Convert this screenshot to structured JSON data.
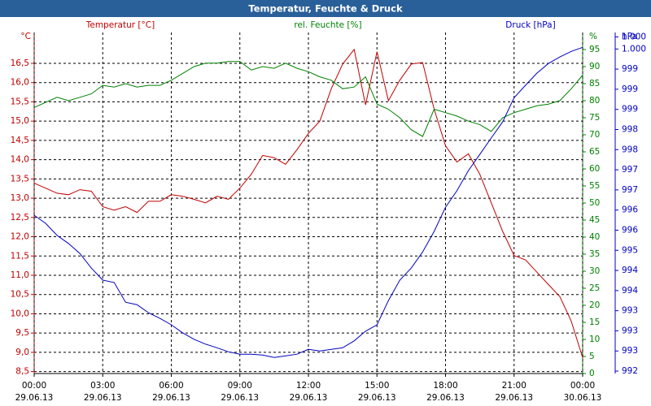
{
  "chart_data": {
    "type": "line",
    "title": "Temperatur, Feuchte & Druck",
    "y_unit": "°C",
    "y2_unit": "%",
    "y3_unit": "hPa",
    "x": [
      0,
      0.5,
      1,
      1.5,
      2,
      2.5,
      3,
      3.5,
      4,
      4.5,
      5,
      5.5,
      6,
      6.5,
      7,
      7.5,
      8,
      8.5,
      9,
      9.5,
      10,
      10.5,
      11,
      11.5,
      12,
      12.5,
      13,
      13.5,
      14,
      14.5,
      15,
      15.5,
      16,
      16.5,
      17,
      17.5,
      18,
      18.5,
      19,
      19.5,
      20,
      20.5,
      21,
      21.5,
      22,
      22.5,
      23,
      23.5,
      24
    ],
    "xlim": [
      0,
      24
    ],
    "xticks": [
      {
        "value": 0,
        "label": "00:00"
      },
      {
        "value": 3,
        "label": "03:00"
      },
      {
        "value": 6,
        "label": "06:00"
      },
      {
        "value": 9,
        "label": "09:00"
      },
      {
        "value": 12,
        "label": "12:00"
      },
      {
        "value": 15,
        "label": "15:00"
      },
      {
        "value": 18,
        "label": "18:00"
      },
      {
        "value": 21,
        "label": "21:00"
      },
      {
        "value": 24,
        "label": "00:00"
      }
    ],
    "xtick_dates": [
      "29.06.13",
      "29.06.13",
      "29.06.13",
      "29.06.13",
      "29.06.13",
      "29.06.13",
      "29.06.13",
      "29.06.13",
      "30.06.13"
    ],
    "ylim": [
      8.45,
      17.3
    ],
    "yticks": [
      {
        "value": 8.5,
        "label": "8,5"
      },
      {
        "value": 9,
        "label": "9,0"
      },
      {
        "value": 9.5,
        "label": "9,5"
      },
      {
        "value": 10,
        "label": "10,0"
      },
      {
        "value": 10.5,
        "label": "10,5"
      },
      {
        "value": 11,
        "label": "11,0"
      },
      {
        "value": 11.5,
        "label": "11,5"
      },
      {
        "value": 12,
        "label": "12,0"
      },
      {
        "value": 12.5,
        "label": "12,5"
      },
      {
        "value": 13,
        "label": "13,0"
      },
      {
        "value": 13.5,
        "label": "13,5"
      },
      {
        "value": 14,
        "label": "14,0"
      },
      {
        "value": 14.5,
        "label": "14,5"
      },
      {
        "value": 15,
        "label": "15,0"
      },
      {
        "value": 15.5,
        "label": "15,5"
      },
      {
        "value": 16,
        "label": "16,0"
      },
      {
        "value": 16.5,
        "label": "16,5"
      }
    ],
    "y2lim": [
      0,
      100
    ],
    "y2ticks": [
      0,
      5,
      10,
      15,
      20,
      25,
      30,
      35,
      40,
      45,
      50,
      55,
      60,
      65,
      70,
      75,
      80,
      85,
      90,
      95
    ],
    "y3lim": [
      991.94,
      1000.41
    ],
    "y3ticks": [
      {
        "value": 992,
        "label": "992"
      },
      {
        "value": 992.5,
        "label": "993"
      },
      {
        "value": 993,
        "label": "993"
      },
      {
        "value": 993.5,
        "label": "993"
      },
      {
        "value": 994,
        "label": "994"
      },
      {
        "value": 994.5,
        "label": "994"
      },
      {
        "value": 995,
        "label": "995"
      },
      {
        "value": 995.5,
        "label": "996"
      },
      {
        "value": 996,
        "label": "996"
      },
      {
        "value": 996.5,
        "label": "997"
      },
      {
        "value": 997,
        "label": "997"
      },
      {
        "value": 997.5,
        "label": "998"
      },
      {
        "value": 998,
        "label": "998"
      },
      {
        "value": 998.5,
        "label": "999"
      },
      {
        "value": 999,
        "label": "999"
      },
      {
        "value": 999.5,
        "label": "999"
      },
      {
        "value": 1000,
        "label": "1.000"
      },
      {
        "value": 1000.3,
        "label": "1.000"
      }
    ],
    "grid": true,
    "series": [
      {
        "name": "Temperatur [°C]",
        "color": "#c00000",
        "axis": "y",
        "values": [
          13.39,
          13.26,
          13.13,
          13.09,
          13.22,
          13.18,
          12.78,
          12.69,
          12.78,
          12.63,
          12.92,
          12.92,
          13.09,
          13.05,
          12.97,
          12.88,
          13.05,
          12.97,
          13.26,
          13.62,
          14.11,
          14.05,
          13.88,
          14.26,
          14.68,
          15.0,
          15.84,
          16.48,
          16.86,
          15.42,
          16.8,
          15.53,
          16.06,
          16.48,
          16.52,
          15.31,
          14.36,
          13.94,
          14.15,
          13.62,
          12.88,
          12.14,
          11.51,
          11.4,
          11.08,
          10.76,
          10.45,
          9.81,
          8.86
        ]
      },
      {
        "name": "rel. Feuchte [%]",
        "color": "#008000",
        "axis": "y2",
        "values": [
          78,
          79.5,
          81,
          80,
          81,
          82,
          84.5,
          84,
          85,
          84,
          84.5,
          84.5,
          86,
          88,
          90,
          91,
          91,
          91.5,
          91.5,
          89,
          90,
          89.5,
          91,
          89.5,
          88.5,
          87,
          86,
          83.5,
          84,
          87,
          79,
          77.5,
          75,
          71.5,
          69.5,
          77.5,
          76.5,
          75.5,
          74,
          73,
          71,
          75,
          76.5,
          77.5,
          78.5,
          79,
          80,
          83.5,
          87.5
        ]
      },
      {
        "name": "Druck [hPa]",
        "color": "#0000c0",
        "axis": "y3",
        "values": [
          995.87,
          995.67,
          995.37,
          995.17,
          994.92,
          994.56,
          994.26,
          994.2,
          993.71,
          993.65,
          993.45,
          993.31,
          993.15,
          992.95,
          992.79,
          992.67,
          992.58,
          992.48,
          992.42,
          992.42,
          992.4,
          992.34,
          992.38,
          992.42,
          992.54,
          992.5,
          992.54,
          992.58,
          992.75,
          992.99,
          993.15,
          993.75,
          994.26,
          994.56,
          994.96,
          995.47,
          996.07,
          996.48,
          996.98,
          997.38,
          997.79,
          998.19,
          998.79,
          999.1,
          999.4,
          999.64,
          999.8,
          999.94,
          1000.04
        ]
      }
    ]
  }
}
